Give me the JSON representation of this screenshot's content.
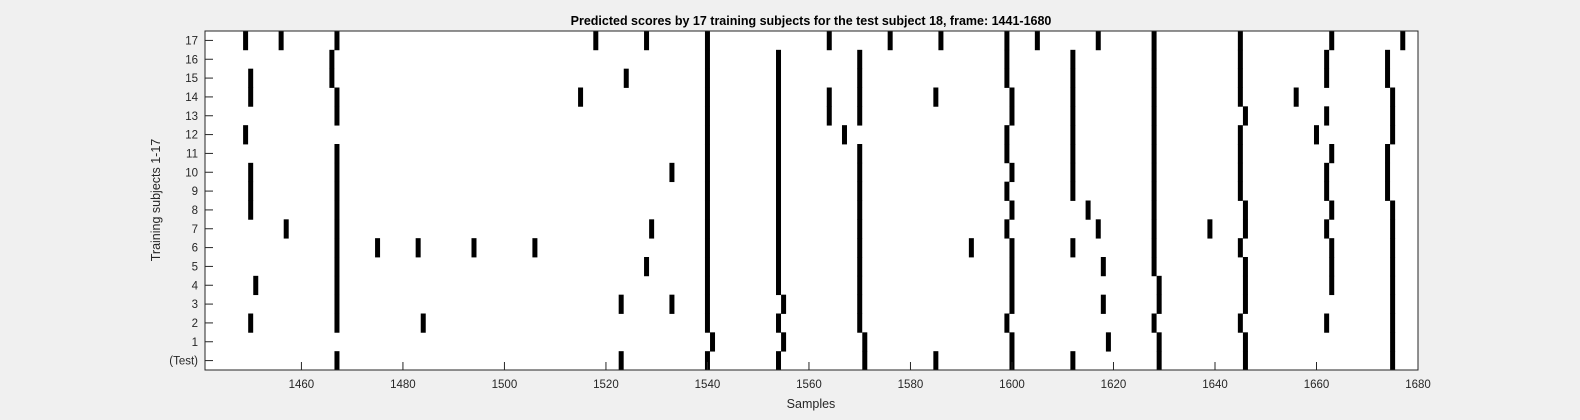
{
  "chart_data": {
    "type": "heatmap",
    "title": "Predicted scores by 17 training subjects for the test subject 18, frame: 1441-1680",
    "xlabel": "Samples",
    "ylabel": "Training subjects 1-17",
    "xlim": [
      1441,
      1680
    ],
    "xticks": [
      1460,
      1480,
      1500,
      1520,
      1540,
      1560,
      1580,
      1600,
      1620,
      1640,
      1660,
      1680
    ],
    "yticklabels": [
      "(Test)",
      "1",
      "2",
      "3",
      "4",
      "5",
      "6",
      "7",
      "8",
      "9",
      "10",
      "11",
      "12",
      "13",
      "14",
      "15",
      "16",
      "17"
    ],
    "grid": false,
    "colors": {
      "background": "#f0f0f0",
      "axes": "#ffffff",
      "mark": "#000000",
      "axis_line": "#262626"
    },
    "rows": [
      {
        "label": "(Test)",
        "samples": [
          1467,
          1523,
          1540,
          1554,
          1571,
          1585,
          1600,
          1612,
          1629,
          1646,
          1675
        ]
      },
      {
        "label": "1",
        "samples": [
          1541,
          1555,
          1571,
          1600,
          1619,
          1629,
          1646,
          1675
        ]
      },
      {
        "label": "2",
        "samples": [
          1450,
          1467,
          1484,
          1540,
          1554,
          1570,
          1599,
          1628,
          1645,
          1662,
          1675
        ]
      },
      {
        "label": "3",
        "samples": [
          1467,
          1523,
          1533,
          1540,
          1555,
          1570,
          1600,
          1618,
          1629,
          1646,
          1675
        ]
      },
      {
        "label": "4",
        "samples": [
          1451,
          1467,
          1540,
          1554,
          1570,
          1600,
          1629,
          1646,
          1663,
          1675
        ]
      },
      {
        "label": "5",
        "samples": [
          1467,
          1528,
          1540,
          1554,
          1570,
          1600,
          1618,
          1628,
          1646,
          1663,
          1675
        ]
      },
      {
        "label": "6",
        "samples": [
          1467,
          1475,
          1483,
          1494,
          1506,
          1540,
          1554,
          1570,
          1592,
          1600,
          1612,
          1628,
          1645,
          1663,
          1675
        ]
      },
      {
        "label": "7",
        "samples": [
          1457,
          1467,
          1529,
          1540,
          1554,
          1570,
          1599,
          1617,
          1628,
          1639,
          1646,
          1662,
          1675
        ]
      },
      {
        "label": "8",
        "samples": [
          1450,
          1467,
          1540,
          1554,
          1570,
          1600,
          1615,
          1628,
          1646,
          1663,
          1675
        ]
      },
      {
        "label": "9",
        "samples": [
          1450,
          1467,
          1540,
          1554,
          1570,
          1599,
          1612,
          1628,
          1645,
          1662,
          1674
        ]
      },
      {
        "label": "10",
        "samples": [
          1450,
          1467,
          1533,
          1540,
          1554,
          1570,
          1600,
          1612,
          1628,
          1645,
          1662,
          1674
        ]
      },
      {
        "label": "11",
        "samples": [
          1467,
          1540,
          1554,
          1570,
          1599,
          1612,
          1628,
          1645,
          1663,
          1674
        ]
      },
      {
        "label": "12",
        "samples": [
          1449,
          1540,
          1554,
          1567,
          1599,
          1612,
          1628,
          1645,
          1660,
          1675
        ]
      },
      {
        "label": "13",
        "samples": [
          1467,
          1540,
          1554,
          1564,
          1570,
          1600,
          1612,
          1628,
          1646,
          1662,
          1675
        ]
      },
      {
        "label": "14",
        "samples": [
          1450,
          1467,
          1515,
          1540,
          1554,
          1564,
          1570,
          1585,
          1600,
          1612,
          1628,
          1645,
          1656,
          1675
        ]
      },
      {
        "label": "15",
        "samples": [
          1450,
          1466,
          1524,
          1540,
          1554,
          1570,
          1599,
          1612,
          1628,
          1645,
          1662,
          1674
        ]
      },
      {
        "label": "16",
        "samples": [
          1466,
          1540,
          1554,
          1570,
          1599,
          1612,
          1628,
          1645,
          1662,
          1674
        ]
      },
      {
        "label": "17",
        "samples": [
          1449,
          1456,
          1467,
          1518,
          1528,
          1540,
          1564,
          1576,
          1586,
          1599,
          1605,
          1617,
          1628,
          1645,
          1663,
          1677
        ]
      }
    ]
  }
}
